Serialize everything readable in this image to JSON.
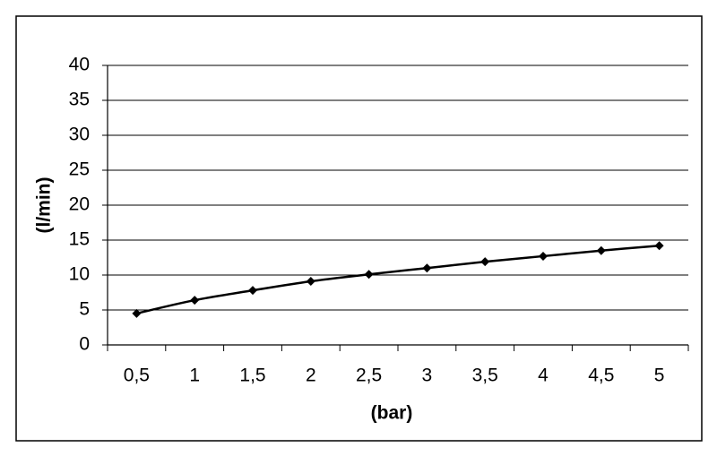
{
  "chart_data": {
    "type": "line",
    "x_label": "(bar)",
    "y_label": "(l/min)",
    "categories": [
      "0,5",
      "1",
      "1,5",
      "2",
      "2,5",
      "3",
      "3,5",
      "4",
      "4,5",
      "5"
    ],
    "values": [
      4.5,
      6.4,
      7.8,
      9.1,
      10.1,
      11.0,
      11.9,
      12.7,
      13.5,
      14.2
    ],
    "color": "#000000",
    "ylim": [
      0,
      40
    ],
    "yticks": [
      0,
      5,
      10,
      15,
      20,
      25,
      30,
      35,
      40
    ],
    "grid": true
  }
}
